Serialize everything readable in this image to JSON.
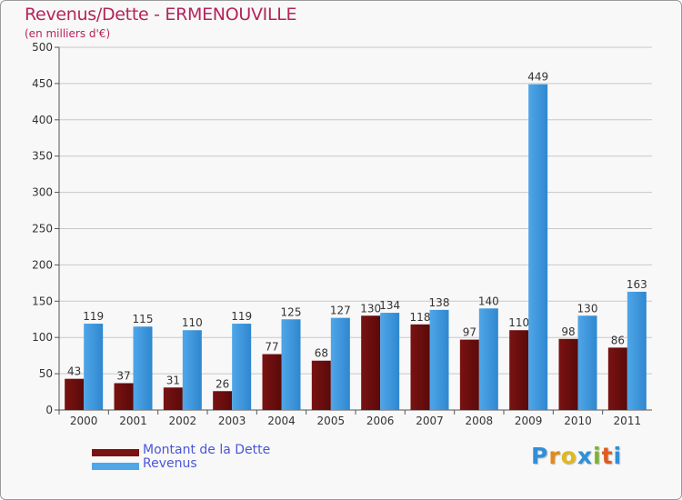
{
  "header": {
    "title": "Revenus/Dette - ERMENOUVILLE",
    "subtitle": "(en milliers d'€)"
  },
  "legend": {
    "debt_label": "Montant de la Dette",
    "revenue_label": "Revenus"
  },
  "logo": {
    "text": "Proxiti",
    "letters": [
      {
        "ch": "P",
        "color": "#2f8fd8"
      },
      {
        "ch": "r",
        "color": "#e08a1e"
      },
      {
        "ch": "o",
        "color": "#e0b81e"
      },
      {
        "ch": "x",
        "color": "#2f8fd8"
      },
      {
        "ch": "i",
        "color": "#7ab62d"
      },
      {
        "ch": "t",
        "color": "#e05a1e"
      },
      {
        "ch": "i",
        "color": "#2f8fd8"
      }
    ]
  },
  "colors": {
    "debt": "#7a1212",
    "debt_light": "#5a0a0a",
    "revenue": "#4fa6e8",
    "revenue_light": "#2f87cf",
    "title": "#b5245a",
    "legend_text": "#4a56d8",
    "grid": "#c8c8c8",
    "axis_text": "#333333"
  },
  "chart_data": {
    "type": "bar",
    "title": "Revenus/Dette - ERMENOUVILLE",
    "subtitle": "(en milliers d'€)",
    "xlabel": "",
    "ylabel": "",
    "ylim": [
      0,
      500
    ],
    "yticks": [
      0,
      50,
      100,
      150,
      200,
      250,
      300,
      350,
      400,
      450,
      500
    ],
    "grid": true,
    "legend_position": "bottom-left",
    "categories": [
      "2000",
      "2001",
      "2002",
      "2003",
      "2004",
      "2005",
      "2006",
      "2007",
      "2008",
      "2009",
      "2010",
      "2011"
    ],
    "series": [
      {
        "name": "Montant de la Dette",
        "values": [
          43,
          37,
          31,
          26,
          77,
          68,
          130,
          118,
          97,
          110,
          98,
          86
        ]
      },
      {
        "name": "Revenus",
        "values": [
          119,
          115,
          110,
          119,
          125,
          127,
          134,
          138,
          140,
          449,
          130,
          163
        ]
      }
    ]
  }
}
